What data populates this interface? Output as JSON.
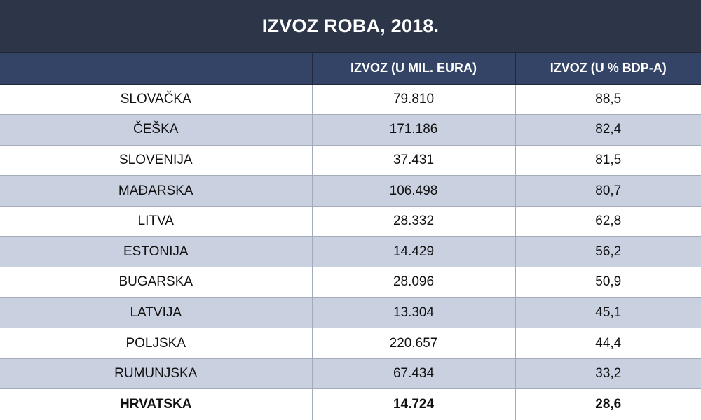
{
  "title": "IZVOZ ROBA, 2018.",
  "columns": [
    "",
    "IZVOZ (U MIL. EURA)",
    "IZVOZ (U % BDP-A)"
  ],
  "rows": [
    {
      "country": "SLOVAČKA",
      "export_mil_eur": "79.810",
      "export_pct_gdp": "88,5"
    },
    {
      "country": "ČEŠKA",
      "export_mil_eur": "171.186",
      "export_pct_gdp": "82,4"
    },
    {
      "country": "SLOVENIJA",
      "export_mil_eur": "37.431",
      "export_pct_gdp": "81,5"
    },
    {
      "country": "MAĐARSKA",
      "export_mil_eur": "106.498",
      "export_pct_gdp": "80,7"
    },
    {
      "country": "LITVA",
      "export_mil_eur": "28.332",
      "export_pct_gdp": "62,8"
    },
    {
      "country": "ESTONIJA",
      "export_mil_eur": "14.429",
      "export_pct_gdp": "56,2"
    },
    {
      "country": "BUGARSKA",
      "export_mil_eur": "28.096",
      "export_pct_gdp": "50,9"
    },
    {
      "country": "LATVIJA",
      "export_mil_eur": "13.304",
      "export_pct_gdp": "45,1"
    },
    {
      "country": "POLJSKA",
      "export_mil_eur": "220.657",
      "export_pct_gdp": "44,4"
    },
    {
      "country": "RUMUNJSKA",
      "export_mil_eur": "67.434",
      "export_pct_gdp": "33,2"
    },
    {
      "country": "HRVATSKA",
      "export_mil_eur": "14.724",
      "export_pct_gdp": "28,6",
      "highlight": true
    }
  ],
  "colors": {
    "title_bg": "#2d3648",
    "header_bg": "#344466",
    "stripe": "#c9d0e0"
  }
}
